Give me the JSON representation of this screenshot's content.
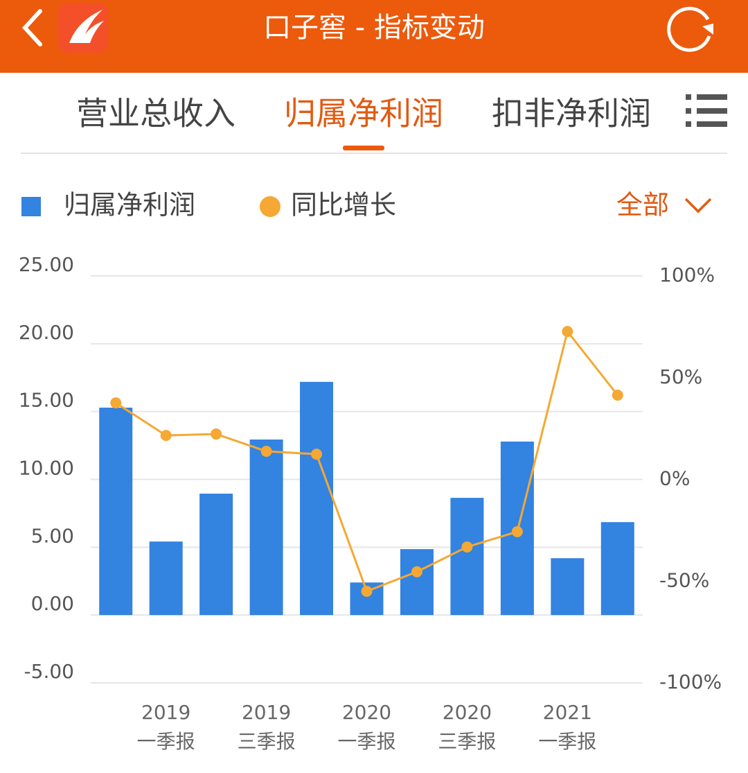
{
  "header": {
    "title": "口子窖 - 指标变动"
  },
  "tabs": [
    "营业总收入",
    "归属净利润",
    "扣非净利润"
  ],
  "active_tab": 1,
  "filter": "全部",
  "chart_data": {
    "type": "bar-line",
    "categories": [
      null,
      [
        "2019",
        "一季报"
      ],
      null,
      [
        "2019",
        "三季报"
      ],
      null,
      [
        "2020",
        "一季报"
      ],
      null,
      [
        "2020",
        "三季报"
      ],
      null,
      [
        "2021",
        "一季报"
      ],
      null
    ],
    "series": [
      {
        "name": "归属净利润",
        "type": "bar",
        "color": "#3383e0",
        "values": [
          15.29,
          5.42,
          8.95,
          12.94,
          17.19,
          2.4,
          4.86,
          8.64,
          12.79,
          4.19,
          6.85
        ]
      },
      {
        "name": "同比增长",
        "type": "line",
        "axis": "y2",
        "color": "#f5a833",
        "values": [
          37.6,
          21.6,
          22.3,
          13.8,
          12.4,
          -55.0,
          -45.4,
          -33.2,
          -25.7,
          72.7,
          41.4
        ]
      }
    ],
    "ylim": [
      -5,
      25
    ],
    "yticks": [
      {
        "value": 25,
        "label": "25.00"
      },
      {
        "value": 20,
        "label": "20.00"
      },
      {
        "value": 15,
        "label": "15.00"
      },
      {
        "value": 10,
        "label": "10.00"
      },
      {
        "value": 5,
        "label": "5.00"
      },
      {
        "value": 0,
        "label": "0.00"
      },
      {
        "value": -5,
        "label": "-5.00"
      }
    ],
    "y2lim": [
      -100,
      100
    ],
    "y2ticks": [
      {
        "value": 100,
        "label": "100%"
      },
      {
        "value": 50,
        "label": "50%"
      },
      {
        "value": 0,
        "label": "0%"
      },
      {
        "value": -50,
        "label": "-50%"
      },
      {
        "value": -100,
        "label": "-100%"
      }
    ],
    "grid": true
  }
}
